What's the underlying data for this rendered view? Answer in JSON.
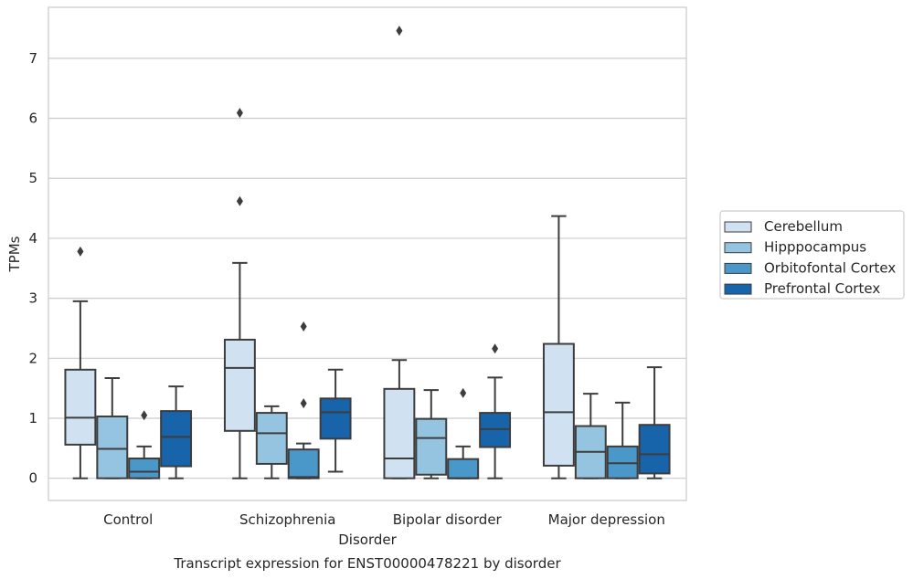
{
  "chart_data": {
    "type": "box",
    "title": "Transcript expression for ENST00000478221 by disorder",
    "xlabel": "Disorder",
    "ylabel": "TPMs",
    "ylim": [
      -0.37,
      7.85
    ],
    "yticks": [
      0,
      1,
      2,
      3,
      4,
      5,
      6,
      7
    ],
    "grid": true,
    "legend_position": "right",
    "categories": [
      "Control",
      "Schizophrenia",
      "Bipolar disorder",
      "Major depression"
    ],
    "series": [
      {
        "name": "Cerebellum",
        "color": "#d0e1f2",
        "boxes": [
          {
            "whislo": 0.0,
            "q1": 0.56,
            "med": 1.01,
            "q3": 1.81,
            "whishi": 2.95,
            "fliers": [
              3.78
            ]
          },
          {
            "whislo": 0.0,
            "q1": 0.79,
            "med": 1.84,
            "q3": 2.31,
            "whishi": 3.59,
            "fliers": [
              4.62,
              6.09
            ]
          },
          {
            "whislo": 0.0,
            "q1": 0.0,
            "med": 0.33,
            "q3": 1.49,
            "whishi": 1.97,
            "fliers": [
              7.46
            ]
          },
          {
            "whislo": 0.0,
            "q1": 0.21,
            "med": 1.1,
            "q3": 2.24,
            "whishi": 4.37,
            "fliers": []
          }
        ]
      },
      {
        "name": "Hipppocampus",
        "color": "#94c4df",
        "boxes": [
          {
            "whislo": 0.0,
            "q1": 0.0,
            "med": 0.49,
            "q3": 1.03,
            "whishi": 1.67,
            "fliers": []
          },
          {
            "whislo": 0.0,
            "q1": 0.24,
            "med": 0.75,
            "q3": 1.09,
            "whishi": 1.2,
            "fliers": []
          },
          {
            "whislo": 0.0,
            "q1": 0.06,
            "med": 0.67,
            "q3": 0.99,
            "whishi": 1.47,
            "fliers": []
          },
          {
            "whislo": 0.0,
            "q1": 0.0,
            "med": 0.44,
            "q3": 0.87,
            "whishi": 1.41,
            "fliers": []
          }
        ]
      },
      {
        "name": "Orbitofontal Cortex",
        "color": "#4a98c9",
        "boxes": [
          {
            "whislo": 0.0,
            "q1": 0.0,
            "med": 0.11,
            "q3": 0.33,
            "whishi": 0.53,
            "fliers": [
              1.05
            ]
          },
          {
            "whislo": 0.0,
            "q1": 0.0,
            "med": 0.02,
            "q3": 0.48,
            "whishi": 0.58,
            "fliers": [
              1.25,
              2.53
            ]
          },
          {
            "whislo": 0.0,
            "q1": 0.0,
            "med": 0.0,
            "q3": 0.32,
            "whishi": 0.53,
            "fliers": [
              1.42
            ]
          },
          {
            "whislo": 0.0,
            "q1": 0.0,
            "med": 0.25,
            "q3": 0.53,
            "whishi": 1.26,
            "fliers": []
          }
        ]
      },
      {
        "name": "Prefrontal Cortex",
        "color": "#1764ab",
        "boxes": [
          {
            "whislo": 0.0,
            "q1": 0.2,
            "med": 0.69,
            "q3": 1.12,
            "whishi": 1.53,
            "fliers": []
          },
          {
            "whislo": 0.11,
            "q1": 0.66,
            "med": 1.1,
            "q3": 1.33,
            "whishi": 1.81,
            "fliers": []
          },
          {
            "whislo": 0.0,
            "q1": 0.52,
            "med": 0.82,
            "q3": 1.09,
            "whishi": 1.68,
            "fliers": [
              2.16
            ]
          },
          {
            "whislo": 0.0,
            "q1": 0.08,
            "med": 0.4,
            "q3": 0.89,
            "whishi": 1.85,
            "fliers": []
          }
        ]
      }
    ]
  }
}
